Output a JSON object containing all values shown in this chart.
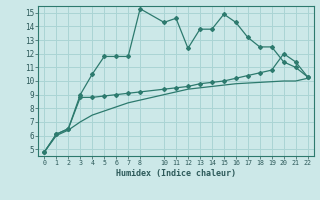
{
  "xlabel": "Humidex (Indice chaleur)",
  "bg_color": "#cce8e8",
  "grid_color": "#aad4d4",
  "line_color": "#2d7a6e",
  "xlim": [
    -0.5,
    22.5
  ],
  "ylim": [
    4.5,
    15.5
  ],
  "xticks": [
    0,
    1,
    2,
    3,
    4,
    5,
    6,
    7,
    8,
    10,
    11,
    12,
    13,
    14,
    15,
    16,
    17,
    18,
    19,
    20,
    21,
    22
  ],
  "yticks": [
    5,
    6,
    7,
    8,
    9,
    10,
    11,
    12,
    13,
    14,
    15
  ],
  "line1_x": [
    0,
    1,
    2,
    3,
    4,
    5,
    6,
    7,
    8,
    10,
    11,
    12,
    13,
    14,
    15,
    16,
    17,
    18,
    19,
    20,
    21,
    22
  ],
  "line1_y": [
    4.8,
    6.1,
    6.5,
    9.0,
    10.5,
    11.8,
    11.8,
    11.8,
    15.3,
    14.3,
    14.6,
    12.4,
    13.8,
    13.8,
    14.9,
    14.3,
    13.2,
    12.5,
    12.5,
    11.4,
    11.0,
    10.3
  ],
  "line2_x": [
    0,
    1,
    2,
    3,
    4,
    5,
    6,
    7,
    8,
    10,
    11,
    12,
    13,
    14,
    15,
    16,
    17,
    18,
    19,
    20,
    21,
    22
  ],
  "line2_y": [
    4.8,
    6.1,
    6.5,
    8.8,
    8.8,
    8.9,
    9.0,
    9.1,
    9.2,
    9.4,
    9.5,
    9.6,
    9.8,
    9.9,
    10.0,
    10.2,
    10.4,
    10.6,
    10.8,
    12.0,
    11.4,
    10.3
  ],
  "line3_x": [
    0,
    1,
    2,
    3,
    4,
    5,
    6,
    7,
    8,
    10,
    11,
    12,
    13,
    14,
    15,
    16,
    17,
    18,
    19,
    20,
    21,
    22
  ],
  "line3_y": [
    4.8,
    6.0,
    6.4,
    7.0,
    7.5,
    7.8,
    8.1,
    8.4,
    8.6,
    9.0,
    9.2,
    9.4,
    9.5,
    9.6,
    9.7,
    9.8,
    9.85,
    9.9,
    9.95,
    10.0,
    10.0,
    10.2
  ]
}
